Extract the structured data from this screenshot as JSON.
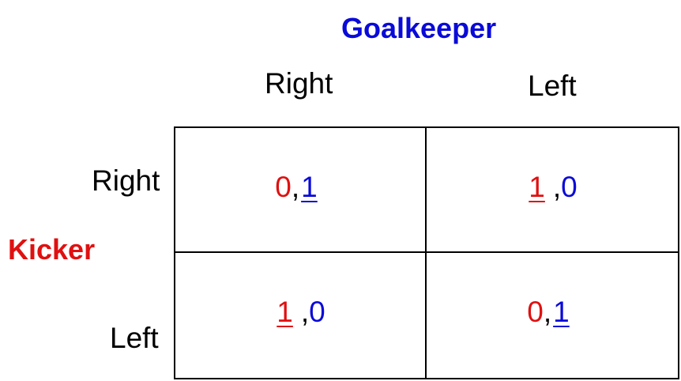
{
  "players": {
    "column": {
      "name": "Goalkeeper",
      "color": "#0a0ad8"
    },
    "row": {
      "name": "Kicker",
      "color": "#e01010"
    }
  },
  "strategies": {
    "column": [
      "Right",
      "Left"
    ],
    "row": [
      "Right",
      "Left"
    ]
  },
  "payoffs": [
    [
      {
        "kicker": "0",
        "goalkeeper": "1",
        "kicker_best": false,
        "goalkeeper_best": true
      },
      {
        "kicker": "1",
        "goalkeeper": "0",
        "kicker_best": true,
        "goalkeeper_best": false
      }
    ],
    [
      {
        "kicker": "1",
        "goalkeeper": "0",
        "kicker_best": true,
        "goalkeeper_best": false
      },
      {
        "kicker": "0",
        "goalkeeper": "1",
        "kicker_best": false,
        "goalkeeper_best": true
      }
    ]
  ],
  "separator": ", "
}
